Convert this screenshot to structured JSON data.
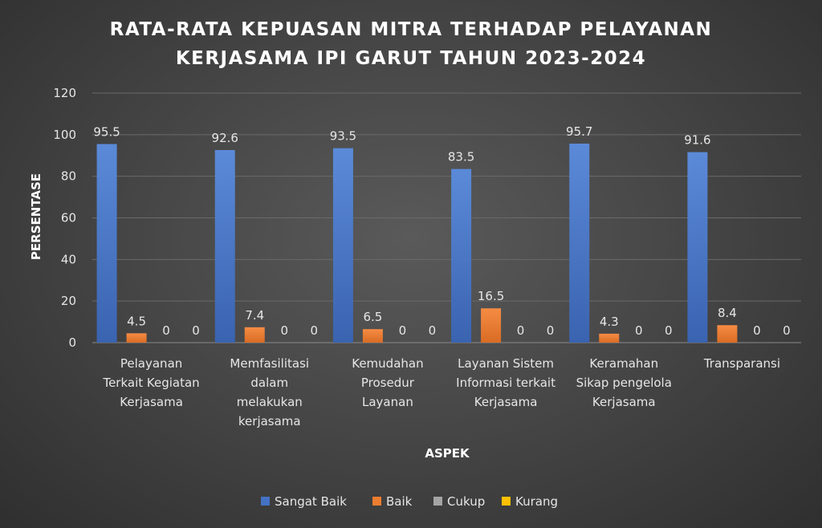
{
  "chart_data": {
    "type": "bar",
    "title_lines": [
      "RATA-RATA KEPUASAN MITRA TERHADAP PELAYANAN",
      "KERJASAMA IPI GARUT TAHUN 2023-2024"
    ],
    "xlabel": "ASPEK",
    "ylabel": "PERSENTASE",
    "ylim": [
      0,
      120
    ],
    "yticks": [
      0,
      20,
      40,
      60,
      80,
      100,
      120
    ],
    "grid": true,
    "legend_position": "bottom",
    "categories": [
      [
        "Pelayanan",
        "Terkait Kegiatan",
        "Kerjasama"
      ],
      [
        "Memfasilitasi",
        "dalam",
        "melakukan",
        "kerjasama"
      ],
      [
        "Kemudahan",
        "Prosedur",
        "Layanan"
      ],
      [
        "Layanan Sistem",
        "Informasi terkait",
        "Kerjasama"
      ],
      [
        "Keramahan",
        "Sikap pengelola",
        "Kerjasama"
      ],
      [
        "Transparansi"
      ]
    ],
    "series": [
      {
        "name": "Sangat Baik",
        "color": "#4472c4",
        "values": [
          95.5,
          92.6,
          93.5,
          83.5,
          95.7,
          91.6
        ]
      },
      {
        "name": "Baik",
        "color": "#ed7d31",
        "values": [
          4.5,
          7.4,
          6.5,
          16.5,
          4.3,
          8.4
        ]
      },
      {
        "name": "Cukup",
        "color": "#a5a5a5",
        "values": [
          0,
          0,
          0,
          0,
          0,
          0
        ]
      },
      {
        "name": "Kurang",
        "color": "#ffc000",
        "values": [
          0,
          0,
          0,
          0,
          0,
          0
        ]
      }
    ]
  }
}
